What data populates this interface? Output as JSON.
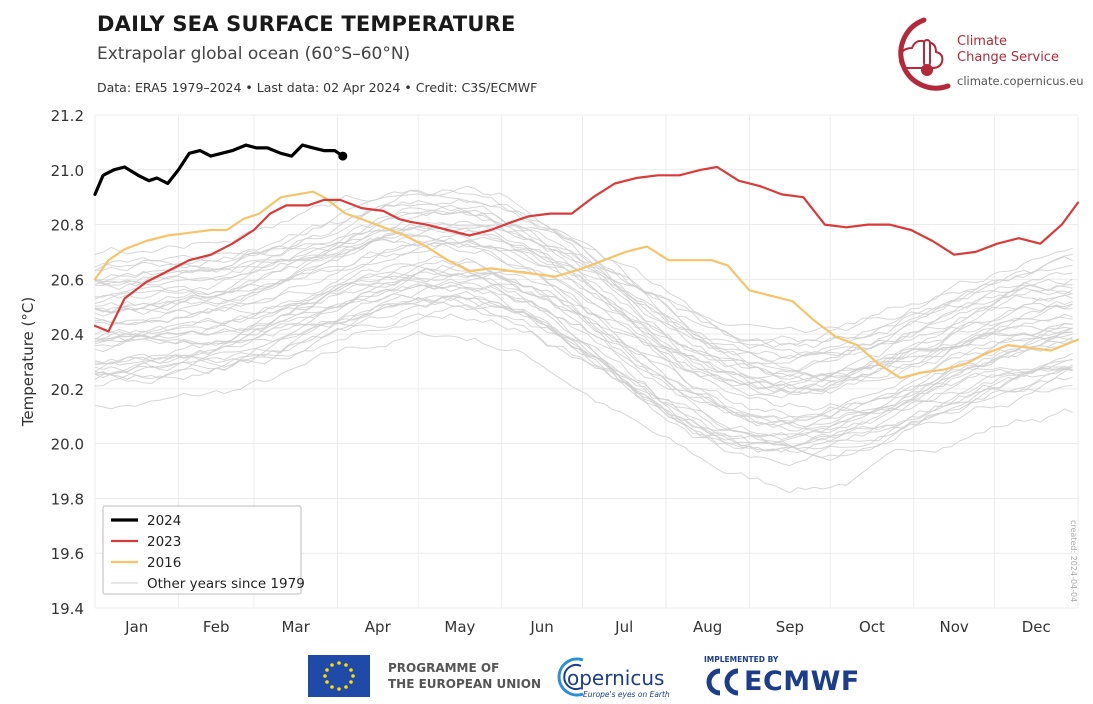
{
  "header": {
    "title": "DAILY SEA SURFACE TEMPERATURE",
    "subtitle": "Extrapolar global ocean (60°S–60°N)",
    "credits": "Data: ERA5 1979–2024 • Last data: 02 Apr 2024 • Credit: C3S/ECMWF"
  },
  "brand": {
    "name_line1": "Climate",
    "name_line2": "Change Service",
    "url": "climate.copernicus.eu",
    "color": "#b5283a"
  },
  "footer": {
    "eu_line1": "PROGRAMME OF",
    "eu_line2": "THE EUROPEAN UNION",
    "copernicus": "opernicus",
    "copernicus_tag": "Europe's eyes on Earth",
    "ecmwf_implemented": "IMPLEMENTED BY",
    "ecmwf": "ECMWF"
  },
  "created_note": "created: 2024-04-04",
  "chart_data": {
    "type": "line",
    "title": "DAILY SEA SURFACE TEMPERATURE",
    "ylabel": "Temperature (°C)",
    "xlabel": "",
    "ylim": [
      19.4,
      21.2
    ],
    "yticks": [
      "19.4",
      "19.6",
      "19.8",
      "20.0",
      "20.2",
      "20.4",
      "20.6",
      "20.8",
      "21.0",
      "21.2"
    ],
    "xlim": [
      1,
      366
    ],
    "x_month_labels": [
      "Jan",
      "Feb",
      "Mar",
      "Apr",
      "May",
      "Jun",
      "Jul",
      "Aug",
      "Sep",
      "Oct",
      "Nov",
      "Dec"
    ],
    "grid": true,
    "legend_position": "bottom-left",
    "legend": [
      "2024",
      "2023",
      "2016",
      "Other years since 1979"
    ],
    "series": [
      {
        "name": "2024",
        "color": "#000000",
        "width": 3.2,
        "x": [
          1,
          4,
          8,
          12,
          17,
          21,
          24,
          28,
          32,
          36,
          40,
          44,
          48,
          52,
          57,
          61,
          65,
          70,
          74,
          78,
          82,
          86,
          90,
          93
        ],
        "y": [
          20.91,
          20.98,
          21.0,
          21.01,
          20.98,
          20.96,
          20.97,
          20.95,
          21.0,
          21.06,
          21.07,
          21.05,
          21.06,
          21.07,
          21.09,
          21.08,
          21.08,
          21.06,
          21.05,
          21.09,
          21.08,
          21.07,
          21.07,
          21.05
        ]
      },
      {
        "name": "2023",
        "color": "#d93a3a",
        "width": 2.2,
        "x": [
          1,
          6,
          12,
          20,
          28,
          36,
          44,
          52,
          60,
          66,
          72,
          80,
          86,
          92,
          100,
          108,
          114,
          118,
          124,
          132,
          140,
          148,
          156,
          162,
          170,
          178,
          186,
          194,
          202,
          210,
          218,
          226,
          232,
          240,
          248,
          256,
          264,
          272,
          280,
          288,
          296,
          304,
          312,
          320,
          328,
          336,
          344,
          352,
          360,
          366
        ],
        "y": [
          20.43,
          20.41,
          20.53,
          20.59,
          20.63,
          20.67,
          20.69,
          20.73,
          20.78,
          20.84,
          20.87,
          20.87,
          20.89,
          20.89,
          20.86,
          20.85,
          20.82,
          20.81,
          20.8,
          20.78,
          20.76,
          20.78,
          20.81,
          20.83,
          20.84,
          20.84,
          20.9,
          20.95,
          20.97,
          20.98,
          20.98,
          21.0,
          21.01,
          20.96,
          20.94,
          20.91,
          20.9,
          20.8,
          20.79,
          20.8,
          20.8,
          20.78,
          20.74,
          20.69,
          20.7,
          20.73,
          20.75,
          20.73,
          20.8,
          20.88
        ]
      },
      {
        "name": "2016",
        "color": "#f6c46a",
        "width": 2.2,
        "x": [
          1,
          6,
          12,
          20,
          28,
          36,
          44,
          50,
          56,
          62,
          66,
          70,
          76,
          82,
          86,
          94,
          100,
          108,
          116,
          124,
          132,
          140,
          148,
          156,
          164,
          172,
          182,
          190,
          198,
          206,
          214,
          222,
          230,
          236,
          244,
          252,
          260,
          268,
          276,
          284,
          292,
          300,
          308,
          316,
          324,
          332,
          340,
          348,
          356,
          366
        ],
        "y": [
          20.6,
          20.67,
          20.71,
          20.74,
          20.76,
          20.77,
          20.78,
          20.78,
          20.82,
          20.84,
          20.87,
          20.9,
          20.91,
          20.92,
          20.9,
          20.84,
          20.82,
          20.79,
          20.76,
          20.72,
          20.67,
          20.63,
          20.64,
          20.63,
          20.62,
          20.61,
          20.64,
          20.67,
          20.7,
          20.72,
          20.67,
          20.67,
          20.67,
          20.65,
          20.56,
          20.54,
          20.52,
          20.45,
          20.39,
          20.36,
          20.29,
          20.24,
          20.26,
          20.27,
          20.29,
          20.33,
          20.36,
          20.35,
          20.34,
          20.38
        ]
      }
    ],
    "other_years_style": {
      "name": "Other years since 1979",
      "color": "#cfcfcf",
      "count": 43
    }
  }
}
